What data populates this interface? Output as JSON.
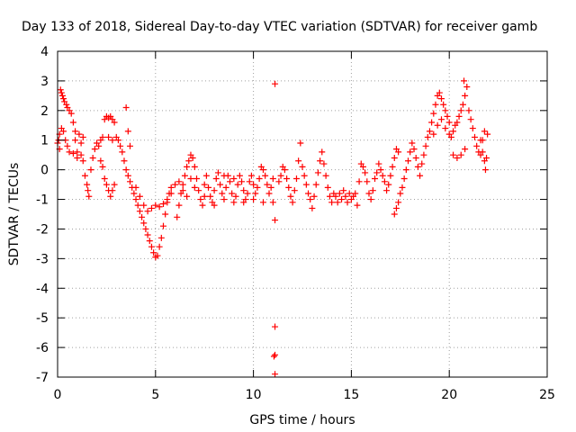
{
  "chart_data": {
    "type": "scatter",
    "title": "Day 133 of 2018, Sidereal Day-to-day VTEC variation (SDTVAR) for receiver gamb",
    "xlabel": "GPS time / hours",
    "ylabel": "SDTVAR / TECUs",
    "xlim": [
      0,
      25
    ],
    "ylim": [
      -7,
      4
    ],
    "xticks": [
      0,
      5,
      10,
      15,
      20,
      25
    ],
    "yticks": [
      -7,
      -6,
      -5,
      -4,
      -3,
      -2,
      -1,
      0,
      1,
      2,
      3,
      4
    ],
    "grid": true,
    "marker": "+",
    "color": "#ff0000",
    "series": [
      {
        "name": "SDTVAR",
        "points": [
          [
            0.0,
            0.9
          ],
          [
            0.05,
            1.0
          ],
          [
            0.1,
            1.2
          ],
          [
            0.1,
            0.7
          ],
          [
            0.15,
            2.7
          ],
          [
            0.2,
            2.6
          ],
          [
            0.25,
            2.5
          ],
          [
            0.3,
            2.4
          ],
          [
            0.35,
            2.3
          ],
          [
            0.45,
            2.2
          ],
          [
            0.5,
            2.1
          ],
          [
            0.6,
            2.0
          ],
          [
            0.7,
            1.9
          ],
          [
            0.8,
            1.6
          ],
          [
            0.9,
            1.3
          ],
          [
            0.2,
            1.4
          ],
          [
            0.3,
            1.3
          ],
          [
            0.4,
            1.0
          ],
          [
            0.5,
            0.8
          ],
          [
            0.6,
            0.6
          ],
          [
            0.8,
            0.55
          ],
          [
            1.0,
            0.6
          ],
          [
            1.2,
            0.5
          ],
          [
            0.9,
            1.0
          ],
          [
            1.1,
            1.2
          ],
          [
            1.3,
            1.1
          ],
          [
            1.0,
            0.4
          ],
          [
            1.2,
            0.9
          ],
          [
            1.3,
            0.3
          ],
          [
            1.4,
            -0.2
          ],
          [
            1.5,
            -0.5
          ],
          [
            1.55,
            -0.7
          ],
          [
            1.6,
            -0.9
          ],
          [
            1.7,
            0.0
          ],
          [
            1.8,
            0.4
          ],
          [
            1.9,
            0.7
          ],
          [
            2.0,
            0.9
          ],
          [
            2.1,
            0.8
          ],
          [
            2.2,
            0.3
          ],
          [
            2.3,
            0.1
          ],
          [
            2.4,
            -0.3
          ],
          [
            2.5,
            -0.5
          ],
          [
            2.6,
            -0.7
          ],
          [
            2.7,
            -0.9
          ],
          [
            2.8,
            -0.7
          ],
          [
            2.9,
            -0.5
          ],
          [
            2.4,
            1.7
          ],
          [
            2.5,
            1.8
          ],
          [
            2.6,
            1.75
          ],
          [
            2.7,
            1.8
          ],
          [
            2.8,
            1.7
          ],
          [
            2.9,
            1.6
          ],
          [
            2.6,
            1.1
          ],
          [
            2.8,
            1.0
          ],
          [
            3.0,
            1.1
          ],
          [
            3.1,
            1.0
          ],
          [
            2.2,
            1.0
          ],
          [
            2.3,
            1.1
          ],
          [
            3.2,
            0.8
          ],
          [
            3.3,
            0.6
          ],
          [
            3.4,
            0.3
          ],
          [
            3.5,
            0.0
          ],
          [
            3.6,
            -0.2
          ],
          [
            3.7,
            -0.4
          ],
          [
            3.8,
            -0.6
          ],
          [
            3.9,
            -0.8
          ],
          [
            4.0,
            -1.0
          ],
          [
            4.1,
            -1.2
          ],
          [
            4.2,
            -1.4
          ],
          [
            4.3,
            -1.6
          ],
          [
            4.4,
            -1.8
          ],
          [
            4.5,
            -2.0
          ],
          [
            4.6,
            -2.2
          ],
          [
            4.7,
            -2.4
          ],
          [
            4.8,
            -2.6
          ],
          [
            4.9,
            -2.8
          ],
          [
            5.0,
            -2.95
          ],
          [
            5.1,
            -2.9
          ],
          [
            5.2,
            -2.6
          ],
          [
            5.3,
            -2.3
          ],
          [
            5.4,
            -1.9
          ],
          [
            5.5,
            -1.5
          ],
          [
            5.6,
            -1.1
          ],
          [
            5.7,
            -0.8
          ],
          [
            5.8,
            -0.6
          ],
          [
            3.5,
            2.1
          ],
          [
            3.6,
            1.3
          ],
          [
            3.7,
            0.8
          ],
          [
            4.0,
            -0.6
          ],
          [
            4.2,
            -0.9
          ],
          [
            4.4,
            -1.2
          ],
          [
            4.6,
            -1.4
          ],
          [
            4.8,
            -1.3
          ],
          [
            5.0,
            -1.2
          ],
          [
            5.2,
            -1.25
          ],
          [
            5.4,
            -1.15
          ],
          [
            5.6,
            -1.0
          ],
          [
            5.8,
            -0.8
          ],
          [
            6.0,
            -0.5
          ],
          [
            6.1,
            -1.6
          ],
          [
            6.2,
            -1.2
          ],
          [
            6.3,
            -0.8
          ],
          [
            6.4,
            -0.5
          ],
          [
            6.5,
            -0.2
          ],
          [
            6.6,
            0.1
          ],
          [
            6.7,
            0.3
          ],
          [
            6.8,
            0.5
          ],
          [
            6.9,
            0.4
          ],
          [
            7.0,
            0.1
          ],
          [
            7.1,
            -0.3
          ],
          [
            7.2,
            -0.7
          ],
          [
            7.3,
            -1.0
          ],
          [
            7.4,
            -1.2
          ],
          [
            6.2,
            -0.4
          ],
          [
            6.4,
            -0.7
          ],
          [
            6.6,
            -0.9
          ],
          [
            6.8,
            -0.3
          ],
          [
            7.0,
            -0.6
          ],
          [
            7.5,
            -0.5
          ],
          [
            7.6,
            -0.2
          ],
          [
            7.7,
            -0.6
          ],
          [
            7.8,
            -0.9
          ],
          [
            7.9,
            -1.1
          ],
          [
            8.0,
            -0.7
          ],
          [
            8.1,
            -0.3
          ],
          [
            8.2,
            -0.1
          ],
          [
            8.3,
            -0.5
          ],
          [
            8.4,
            -0.8
          ],
          [
            8.5,
            -1.0
          ],
          [
            8.6,
            -0.6
          ],
          [
            8.7,
            -0.2
          ],
          [
            8.8,
            -0.4
          ],
          [
            8.9,
            -0.8
          ],
          [
            9.0,
            -1.1
          ],
          [
            9.1,
            -0.9
          ],
          [
            9.2,
            -0.5
          ],
          [
            9.3,
            -0.2
          ],
          [
            9.4,
            -0.4
          ],
          [
            9.5,
            -0.7
          ],
          [
            9.6,
            -1.0
          ],
          [
            9.7,
            -0.8
          ],
          [
            9.8,
            -0.4
          ],
          [
            9.9,
            -0.2
          ],
          [
            10.0,
            -0.5
          ],
          [
            10.1,
            -0.8
          ],
          [
            10.2,
            -0.6
          ],
          [
            10.3,
            -0.3
          ],
          [
            10.4,
            0.1
          ],
          [
            10.5,
            0.0
          ],
          [
            10.6,
            -0.2
          ],
          [
            10.7,
            -0.5
          ],
          [
            10.8,
            -0.8
          ],
          [
            10.9,
            -0.6
          ],
          [
            11.0,
            -0.3
          ],
          [
            7.5,
            -0.9
          ],
          [
            8.0,
            -1.2
          ],
          [
            8.5,
            -0.2
          ],
          [
            9.0,
            -0.3
          ],
          [
            9.5,
            -1.1
          ],
          [
            10.0,
            -1.0
          ],
          [
            10.5,
            -1.1
          ],
          [
            11.0,
            -1.1
          ],
          [
            11.1,
            2.9
          ],
          [
            11.1,
            -1.7
          ],
          [
            11.1,
            -5.3
          ],
          [
            11.05,
            -6.3
          ],
          [
            11.1,
            -6.25
          ],
          [
            11.1,
            -6.9
          ],
          [
            11.3,
            -0.4
          ],
          [
            11.4,
            -0.2
          ],
          [
            11.5,
            0.1
          ],
          [
            11.6,
            0.0
          ],
          [
            11.7,
            -0.3
          ],
          [
            11.8,
            -0.6
          ],
          [
            11.9,
            -0.9
          ],
          [
            12.0,
            -1.1
          ],
          [
            12.1,
            -0.7
          ],
          [
            12.2,
            -0.3
          ],
          [
            12.3,
            0.3
          ],
          [
            12.4,
            0.9
          ],
          [
            12.5,
            0.1
          ],
          [
            12.6,
            -0.2
          ],
          [
            12.7,
            -0.5
          ],
          [
            12.8,
            -0.8
          ],
          [
            12.9,
            -1.0
          ],
          [
            13.0,
            -1.3
          ],
          [
            13.1,
            -0.9
          ],
          [
            13.2,
            -0.5
          ],
          [
            13.3,
            -0.1
          ],
          [
            13.4,
            0.3
          ],
          [
            13.5,
            0.6
          ],
          [
            13.6,
            0.2
          ],
          [
            13.7,
            -0.2
          ],
          [
            13.8,
            -0.6
          ],
          [
            13.9,
            -0.9
          ],
          [
            14.0,
            -1.1
          ],
          [
            14.1,
            -0.8
          ],
          [
            14.2,
            -0.9
          ],
          [
            14.3,
            -1.1
          ],
          [
            14.4,
            -0.8
          ],
          [
            14.5,
            -1.0
          ],
          [
            14.6,
            -0.7
          ],
          [
            14.7,
            -0.9
          ],
          [
            14.8,
            -1.1
          ],
          [
            14.9,
            -0.8
          ],
          [
            15.0,
            -1.0
          ],
          [
            15.1,
            -0.9
          ],
          [
            15.2,
            -0.8
          ],
          [
            15.3,
            -1.2
          ],
          [
            15.4,
            -0.4
          ],
          [
            15.5,
            0.2
          ],
          [
            15.6,
            0.1
          ],
          [
            15.7,
            -0.1
          ],
          [
            15.8,
            -0.4
          ],
          [
            15.9,
            -0.8
          ],
          [
            16.0,
            -1.0
          ],
          [
            16.1,
            -0.7
          ],
          [
            16.2,
            -0.3
          ],
          [
            16.3,
            -0.1
          ],
          [
            16.4,
            0.2
          ],
          [
            16.5,
            0.0
          ],
          [
            16.6,
            -0.2
          ],
          [
            16.7,
            -0.4
          ],
          [
            16.8,
            -0.7
          ],
          [
            16.9,
            -0.5
          ],
          [
            17.0,
            -0.2
          ],
          [
            17.1,
            0.1
          ],
          [
            17.2,
            0.4
          ],
          [
            17.3,
            0.7
          ],
          [
            17.4,
            0.6
          ],
          [
            17.2,
            -1.5
          ],
          [
            17.3,
            -1.3
          ],
          [
            17.4,
            -1.1
          ],
          [
            17.5,
            -0.8
          ],
          [
            17.6,
            -0.6
          ],
          [
            17.7,
            -0.3
          ],
          [
            17.8,
            0.0
          ],
          [
            17.9,
            0.3
          ],
          [
            18.0,
            0.6
          ],
          [
            18.1,
            0.9
          ],
          [
            18.2,
            0.7
          ],
          [
            18.3,
            0.4
          ],
          [
            18.4,
            0.1
          ],
          [
            18.5,
            -0.2
          ],
          [
            18.6,
            0.2
          ],
          [
            18.7,
            0.5
          ],
          [
            18.8,
            0.8
          ],
          [
            18.9,
            1.1
          ],
          [
            19.0,
            1.3
          ],
          [
            19.1,
            1.6
          ],
          [
            19.2,
            1.9
          ],
          [
            19.3,
            2.2
          ],
          [
            19.4,
            2.5
          ],
          [
            19.5,
            2.6
          ],
          [
            19.6,
            2.4
          ],
          [
            19.7,
            2.2
          ],
          [
            19.8,
            2.0
          ],
          [
            19.9,
            1.8
          ],
          [
            20.0,
            1.6
          ],
          [
            19.2,
            1.2
          ],
          [
            19.4,
            1.5
          ],
          [
            19.6,
            1.7
          ],
          [
            19.8,
            1.4
          ],
          [
            20.0,
            1.2
          ],
          [
            20.1,
            1.1
          ],
          [
            20.2,
            1.3
          ],
          [
            20.3,
            1.5
          ],
          [
            20.4,
            1.6
          ],
          [
            20.5,
            1.8
          ],
          [
            20.6,
            2.0
          ],
          [
            20.7,
            2.2
          ],
          [
            20.8,
            2.5
          ],
          [
            20.9,
            2.8
          ],
          [
            20.75,
            3.0
          ],
          [
            21.0,
            2.0
          ],
          [
            21.1,
            1.7
          ],
          [
            21.2,
            1.4
          ],
          [
            21.3,
            1.1
          ],
          [
            21.4,
            0.8
          ],
          [
            21.5,
            0.6
          ],
          [
            20.2,
            0.5
          ],
          [
            20.4,
            0.4
          ],
          [
            20.6,
            0.5
          ],
          [
            20.8,
            0.7
          ],
          [
            21.6,
            1.0
          ],
          [
            21.7,
            0.6
          ],
          [
            21.8,
            0.3
          ],
          [
            21.85,
            0.0
          ],
          [
            21.9,
            0.4
          ],
          [
            21.95,
            1.2
          ],
          [
            21.8,
            1.3
          ],
          [
            21.7,
            1.0
          ],
          [
            21.6,
            0.5
          ]
        ]
      }
    ]
  }
}
